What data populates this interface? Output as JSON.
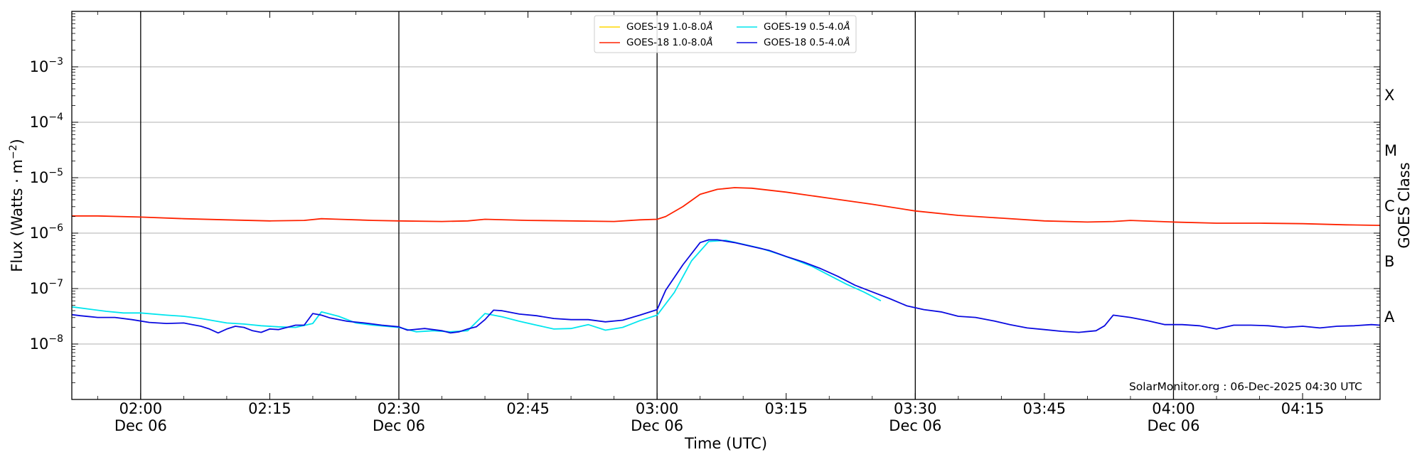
{
  "chart_data": {
    "type": "line",
    "xlabel": "Time (UTC)",
    "ylabel": "Flux (Watts · m",
    "ylabel_sup": "−2",
    "ylabel_close": ")",
    "y2label": "GOES Class",
    "yscale": "log",
    "ylim": [
      1e-09,
      0.01
    ],
    "xlim": [
      "2025-12-06 01:52",
      "2025-12-06 04:24"
    ],
    "grid": "horizontal at decades 1e-8 to 1e-3",
    "legend_position": "top-center",
    "credit": "SolarMonitor.org : 06-Dec-2025 04:30 UTC",
    "x_ticks": [
      {
        "time": "02:00",
        "line1": "02:00",
        "line2": "Dec 06",
        "major": true
      },
      {
        "time": "02:15",
        "line1": "02:15",
        "line2": "",
        "major": false
      },
      {
        "time": "02:30",
        "line1": "02:30",
        "line2": "Dec 06",
        "major": true
      },
      {
        "time": "02:45",
        "line1": "02:45",
        "line2": "",
        "major": false
      },
      {
        "time": "03:00",
        "line1": "03:00",
        "line2": "Dec 06",
        "major": true
      },
      {
        "time": "03:15",
        "line1": "03:15",
        "line2": "",
        "major": false
      },
      {
        "time": "03:30",
        "line1": "03:30",
        "line2": "Dec 06",
        "major": true
      },
      {
        "time": "03:45",
        "line1": "03:45",
        "line2": "",
        "major": false
      },
      {
        "time": "04:00",
        "line1": "04:00",
        "line2": "Dec 06",
        "major": true
      },
      {
        "time": "04:15",
        "line1": "04:15",
        "line2": "",
        "major": false
      }
    ],
    "y_ticks": [
      {
        "exp": -8,
        "base": "10",
        "sup": "−8"
      },
      {
        "exp": -7,
        "base": "10",
        "sup": "−7"
      },
      {
        "exp": -6,
        "base": "10",
        "sup": "−6"
      },
      {
        "exp": -5,
        "base": "10",
        "sup": "−5"
      },
      {
        "exp": -4,
        "base": "10",
        "sup": "−4"
      },
      {
        "exp": -3,
        "base": "10",
        "sup": "−3"
      }
    ],
    "goes_classes": [
      {
        "label": "A",
        "exp": -7.5
      },
      {
        "label": "B",
        "exp": -6.5
      },
      {
        "label": "C",
        "exp": -5.5
      },
      {
        "label": "M",
        "exp": -4.5
      },
      {
        "label": "X",
        "exp": -3.5
      }
    ],
    "series": [
      {
        "name": "GOES-19 1.0-8.0",
        "name_suffix": "Å",
        "color": "#ffd700",
        "times": [],
        "exps": []
      },
      {
        "name": "GOES-18 1.0-8.0",
        "name_suffix": "Å",
        "color": "#ff2200",
        "times": [
          "01:52",
          "01:55",
          "02:00",
          "02:05",
          "02:10",
          "02:15",
          "02:19",
          "02:21",
          "02:23",
          "02:27",
          "02:30",
          "02:35",
          "02:38",
          "02:40",
          "02:45",
          "02:50",
          "02:55",
          "02:58",
          "03:00",
          "03:01",
          "03:03",
          "03:05",
          "03:07",
          "03:09",
          "03:11",
          "03:15",
          "03:20",
          "03:25",
          "03:30",
          "03:35",
          "03:40",
          "03:45",
          "03:50",
          "03:53",
          "03:55",
          "04:00",
          "04:05",
          "04:10",
          "04:15",
          "04:20",
          "04:24"
        ],
        "exps": [
          -5.69,
          -5.69,
          -5.71,
          -5.74,
          -5.76,
          -5.78,
          -5.77,
          -5.74,
          -5.75,
          -5.77,
          -5.78,
          -5.79,
          -5.78,
          -5.75,
          -5.77,
          -5.78,
          -5.79,
          -5.76,
          -5.75,
          -5.7,
          -5.52,
          -5.3,
          -5.21,
          -5.18,
          -5.19,
          -5.26,
          -5.37,
          -5.48,
          -5.6,
          -5.68,
          -5.73,
          -5.78,
          -5.8,
          -5.79,
          -5.77,
          -5.8,
          -5.82,
          -5.82,
          -5.83,
          -5.85,
          -5.86
        ]
      },
      {
        "name": "GOES-19 0.5-4.0",
        "name_suffix": "Å",
        "color": "#00e5ee",
        "times": [
          "01:52",
          "01:54",
          "01:56",
          "01:58",
          "02:00",
          "02:03",
          "02:05",
          "02:07",
          "02:10",
          "02:12",
          "02:14",
          "02:16",
          "02:18",
          "02:20",
          "02:21",
          "02:23",
          "02:25",
          "02:27",
          "02:30",
          "02:32",
          "02:34",
          "02:36",
          "02:38",
          "02:40",
          "02:42",
          "02:44",
          "02:46",
          "02:48",
          "02:50",
          "02:52",
          "02:54",
          "02:56",
          "02:58",
          "03:00",
          "03:02",
          "03:04",
          "03:06",
          "03:08",
          "03:10",
          "03:12",
          "03:14",
          "03:16",
          "03:18",
          "03:20",
          "03:22",
          "03:24",
          "03:26"
        ],
        "exps": [
          -7.33,
          -7.37,
          -7.41,
          -7.44,
          -7.44,
          -7.48,
          -7.5,
          -7.54,
          -7.62,
          -7.64,
          -7.67,
          -7.69,
          -7.7,
          -7.63,
          -7.42,
          -7.5,
          -7.62,
          -7.66,
          -7.7,
          -7.78,
          -7.76,
          -7.78,
          -7.76,
          -7.45,
          -7.51,
          -7.59,
          -7.66,
          -7.73,
          -7.72,
          -7.65,
          -7.75,
          -7.7,
          -7.58,
          -7.48,
          -7.07,
          -6.5,
          -6.15,
          -6.13,
          -6.2,
          -6.27,
          -6.37,
          -6.48,
          -6.6,
          -6.76,
          -6.92,
          -7.06,
          -7.22
        ]
      },
      {
        "name": "GOES-18 0.5-4.0",
        "name_suffix": "Å",
        "color": "#0a0ae0",
        "times": [
          "01:52",
          "01:53",
          "01:55",
          "01:57",
          "01:59",
          "02:01",
          "02:03",
          "02:05",
          "02:06",
          "02:07",
          "02:08",
          "02:09",
          "02:10",
          "02:11",
          "02:12",
          "02:13",
          "02:14",
          "02:15",
          "02:16",
          "02:17",
          "02:18",
          "02:19",
          "02:20",
          "02:21",
          "02:22",
          "02:24",
          "02:26",
          "02:28",
          "02:30",
          "02:31",
          "02:33",
          "02:35",
          "02:36",
          "02:37",
          "02:38",
          "02:39",
          "02:40",
          "02:41",
          "02:42",
          "02:44",
          "02:46",
          "02:48",
          "02:50",
          "02:52",
          "02:54",
          "02:56",
          "02:58",
          "03:00",
          "03:01",
          "03:03",
          "03:05",
          "03:06",
          "03:07",
          "03:09",
          "03:11",
          "03:13",
          "03:15",
          "03:17",
          "03:19",
          "03:21",
          "03:23",
          "03:25",
          "03:27",
          "03:29",
          "03:31",
          "03:33",
          "03:35",
          "03:37",
          "03:39",
          "03:41",
          "03:43",
          "03:45",
          "03:47",
          "03:49",
          "03:51",
          "03:52",
          "03:53",
          "03:55",
          "03:57",
          "03:59",
          "04:01",
          "04:03",
          "04:05",
          "04:07",
          "04:09",
          "04:11",
          "04:13",
          "04:15",
          "04:17",
          "04:19",
          "04:21",
          "04:23",
          "04:24"
        ],
        "exps": [
          -7.47,
          -7.49,
          -7.52,
          -7.52,
          -7.56,
          -7.61,
          -7.63,
          -7.62,
          -7.65,
          -7.68,
          -7.73,
          -7.8,
          -7.73,
          -7.68,
          -7.7,
          -7.76,
          -7.79,
          -7.73,
          -7.74,
          -7.7,
          -7.66,
          -7.66,
          -7.45,
          -7.48,
          -7.53,
          -7.59,
          -7.62,
          -7.66,
          -7.69,
          -7.75,
          -7.72,
          -7.76,
          -7.8,
          -7.78,
          -7.73,
          -7.69,
          -7.56,
          -7.39,
          -7.4,
          -7.46,
          -7.49,
          -7.54,
          -7.56,
          -7.56,
          -7.6,
          -7.57,
          -7.48,
          -7.38,
          -7.03,
          -6.57,
          -6.17,
          -6.12,
          -6.12,
          -6.17,
          -6.24,
          -6.31,
          -6.42,
          -6.52,
          -6.64,
          -6.78,
          -6.94,
          -7.06,
          -7.18,
          -7.31,
          -7.38,
          -7.42,
          -7.5,
          -7.52,
          -7.58,
          -7.65,
          -7.71,
          -7.74,
          -7.77,
          -7.79,
          -7.76,
          -7.67,
          -7.48,
          -7.52,
          -7.58,
          -7.65,
          -7.65,
          -7.67,
          -7.73,
          -7.66,
          -7.66,
          -7.67,
          -7.7,
          -7.68,
          -7.71,
          -7.68,
          -7.67,
          -7.65,
          -7.66
        ]
      }
    ]
  }
}
